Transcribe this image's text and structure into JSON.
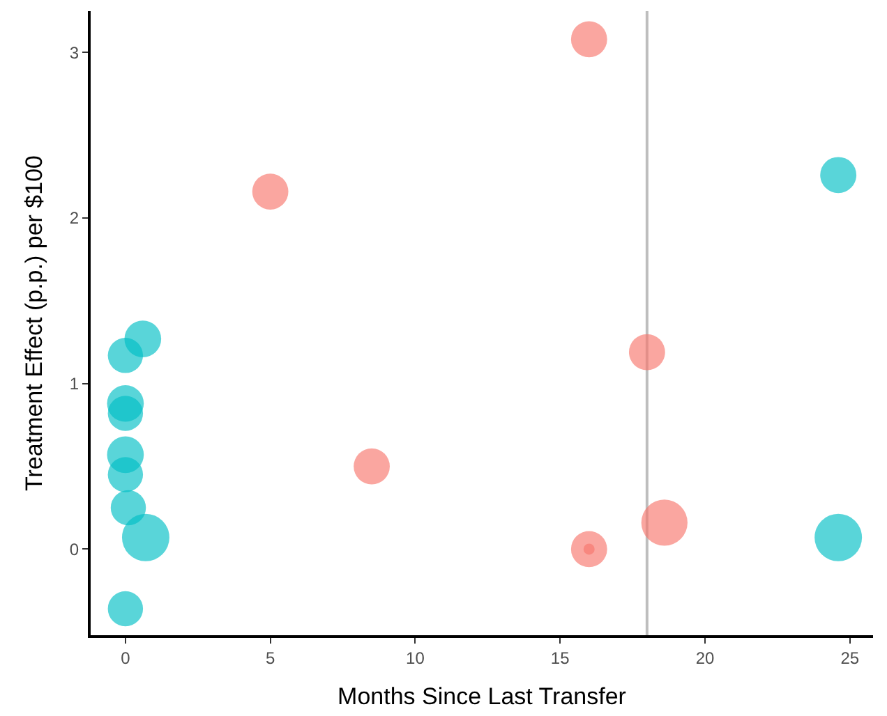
{
  "chart_data": {
    "type": "bubble",
    "xlabel": "Months Since Last Transfer",
    "ylabel": "Treatment Effect (p.p.) per $100",
    "xlim": [
      -1.2,
      25.8
    ],
    "ylim": [
      -0.52,
      3.25
    ],
    "xticks": [
      0,
      5,
      10,
      15,
      20,
      25
    ],
    "yticks": [
      0,
      1,
      2,
      3
    ],
    "grid": false,
    "series": [
      {
        "color": "#00bfc4",
        "x": [
          0,
          0.1,
          0.7,
          0,
          0,
          0,
          0,
          0,
          0.6,
          24.6,
          24.6
        ],
        "values": [
          -0.36,
          0.25,
          0.07,
          0.45,
          0.57,
          0.82,
          0.88,
          1.17,
          1.27,
          2.26,
          0.07
        ],
        "sizes": [
          0.55,
          0.55,
          1,
          0.55,
          0.6,
          0.55,
          0.6,
          0.55,
          0.6,
          0.58,
          1
        ]
      },
      {
        "color": "#f8766d",
        "x": [
          16,
          5,
          18,
          8.5,
          16,
          16,
          18.6
        ],
        "values": [
          3.08,
          2.16,
          1.19,
          0.5,
          0.0,
          0.0,
          0.16
        ],
        "sizes": [
          0.58,
          0.58,
          0.58,
          0.58,
          0.055,
          0.58,
          0.95
        ]
      }
    ],
    "ref_lines": [
      {
        "axis": "x",
        "value": 18,
        "color": "#bebebe",
        "line_style": "solid"
      }
    ]
  }
}
